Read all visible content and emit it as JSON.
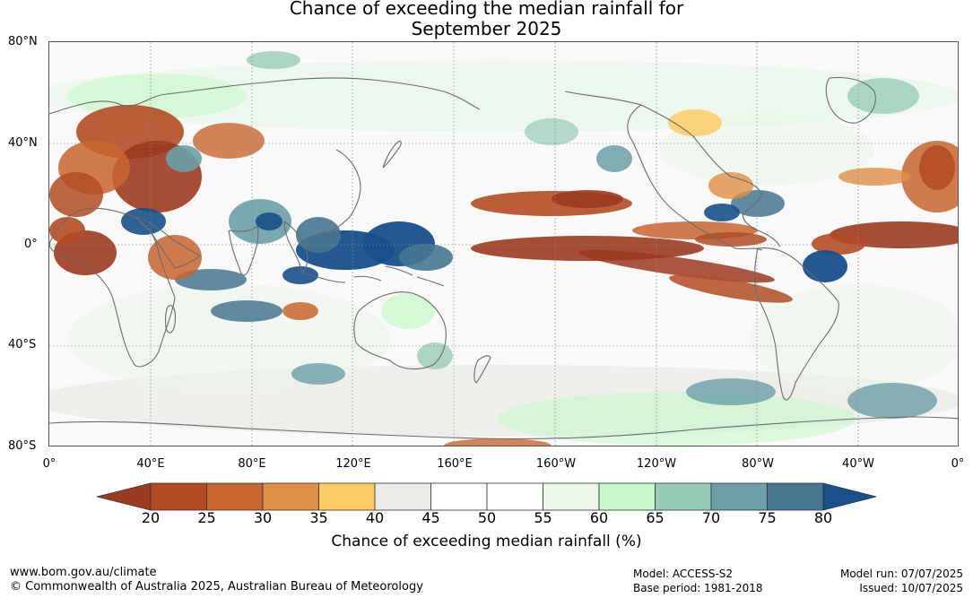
{
  "title": {
    "line1": "Chance of exceeding the median rainfall for",
    "line2": "September 2025"
  },
  "map": {
    "lat_labels": [
      "80°N",
      "40°N",
      "0°",
      "40°S",
      "80°S"
    ],
    "lon_labels": [
      "0°",
      "40°E",
      "80°E",
      "120°E",
      "160°E",
      "160°W",
      "120°W",
      "80°W",
      "40°W",
      "0°"
    ],
    "projection": "equirectangular, 0° to 360°",
    "gridlines": true
  },
  "colorbar": {
    "label": "Chance of exceeding median rainfall (%)",
    "ticks": [
      "20",
      "25",
      "30",
      "35",
      "40",
      "45",
      "50",
      "55",
      "60",
      "65",
      "70",
      "75",
      "80"
    ],
    "under_color": "#9c3a20",
    "over_color": "#17508a",
    "colors": [
      "#b34c25",
      "#c9652f",
      "#de8f45",
      "#fccc67",
      "#ebebe7",
      "#ffffff",
      "#ffffff",
      "#eaf6e8",
      "#c8f8c8",
      "#98ccb6",
      "#6c9fa8",
      "#457790"
    ]
  },
  "features": {
    "wet": [
      {
        "region": "Maritime Continent / eastern Indian Ocean",
        "value": 80
      },
      {
        "region": "Equatorial Atlantic off Brazil",
        "value": 80
      },
      {
        "region": "East Africa / Ethiopian Highlands",
        "value": 78
      },
      {
        "region": "Caribbean",
        "value": 75
      }
    ],
    "dry": [
      {
        "region": "Central and eastern equatorial Pacific",
        "value": 20
      },
      {
        "region": "Middle East / Arabian Peninsula",
        "value": 22
      },
      {
        "region": "Equatorial Atlantic and West Africa",
        "value": 22
      },
      {
        "region": "North-east Pacific ITCZ",
        "value": 25
      }
    ]
  },
  "footer": {
    "website": "www.bom.gov.au/climate",
    "copyright": "© Commonwealth of Australia 2025, Australian Bureau of Meteorology",
    "model": "Model: ACCESS-S2",
    "base_period": "Base period: 1981-2018",
    "model_run": "Model run: 07/07/2025",
    "issued": "Issued: 10/07/2025"
  }
}
